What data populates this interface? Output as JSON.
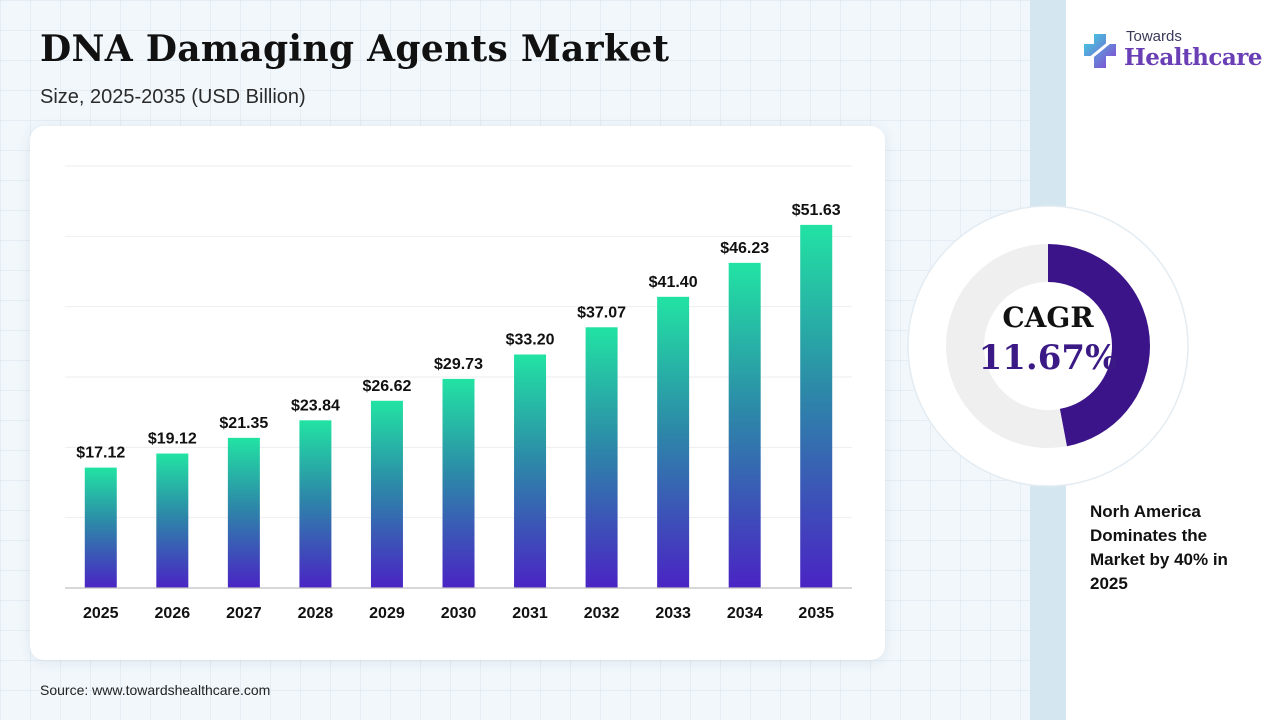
{
  "header": {
    "title": "DNA Damaging Agents Market",
    "subtitle": "Size, 2025-2035 (USD Billion)"
  },
  "logo": {
    "top_text": "Towards",
    "brand_text": "Healthcare"
  },
  "chart_data": {
    "type": "bar",
    "categories": [
      "2025",
      "2026",
      "2027",
      "2028",
      "2029",
      "2030",
      "2031",
      "2032",
      "2033",
      "2034",
      "2035"
    ],
    "values": [
      17.12,
      19.12,
      21.35,
      23.84,
      26.62,
      29.73,
      33.2,
      37.07,
      41.4,
      46.23,
      51.63
    ],
    "value_labels": [
      "$17.12",
      "$19.12",
      "$21.35",
      "$23.84",
      "$26.62",
      "$29.73",
      "$33.20",
      "$37.07",
      "$41.40",
      "$46.23",
      "$51.63"
    ],
    "title": "",
    "xlabel": "",
    "ylabel": "",
    "ylim": [
      0,
      60
    ],
    "grid": true,
    "bar_gradient": {
      "top": "#22e3a3",
      "middle": "#2c8aa8",
      "bottom": "#4a24c4"
    }
  },
  "cagr": {
    "label": "CAGR",
    "value": "11.67%",
    "ring_colors": {
      "fill": "#3c1489",
      "track": "#efefef"
    }
  },
  "note": {
    "text": "Norh America Dominates the Market by 40% in 2025"
  },
  "footer": {
    "source": "Source: www.towardshealthcare.com"
  }
}
